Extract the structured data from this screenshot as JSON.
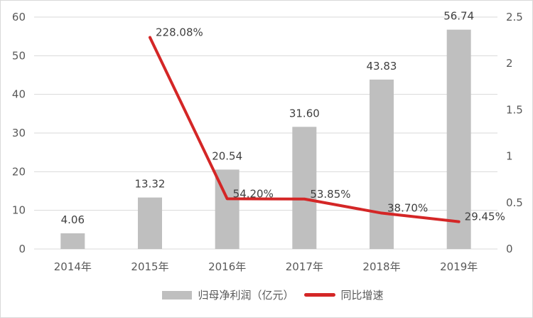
{
  "chart_data": {
    "type": "bar+line",
    "title": "",
    "categories": [
      "2014年",
      "2015年",
      "2016年",
      "2017年",
      "2018年",
      "2019年"
    ],
    "series": [
      {
        "name": "归母净利润（亿元）",
        "type": "bar",
        "axis": "left",
        "color": "#bfbfbf",
        "values": [
          4.06,
          13.32,
          20.54,
          31.6,
          43.83,
          56.74
        ],
        "labels": [
          "4.06",
          "13.32",
          "20.54",
          "31.60",
          "43.83",
          "56.74"
        ]
      },
      {
        "name": "同比增速",
        "type": "line",
        "axis": "right",
        "color": "#d42626",
        "values": [
          null,
          2.2808,
          0.542,
          0.5385,
          0.387,
          0.2945
        ],
        "labels": [
          "",
          "228.08%",
          "54.20%",
          "53.85%",
          "38.70%",
          "29.45%"
        ]
      }
    ],
    "y_left": {
      "ylim": [
        0,
        60
      ],
      "ticks": [
        "0",
        "10",
        "20",
        "30",
        "40",
        "50",
        "60"
      ]
    },
    "y_right": {
      "ylim": [
        0,
        2.5
      ],
      "ticks": [
        "0",
        "0.5",
        "1",
        "1.5",
        "2",
        "2.5"
      ]
    },
    "grid": true,
    "legend_position": "bottom"
  },
  "legend": {
    "bar_label": "归母净利润（亿元）",
    "line_label": "同比增速"
  }
}
